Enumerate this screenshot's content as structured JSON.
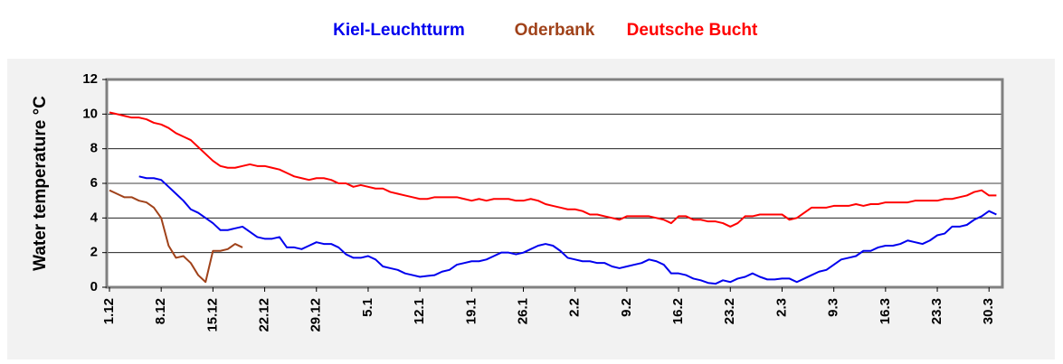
{
  "chart_data": {
    "type": "line",
    "ylabel": "Water temperature °C",
    "ylim": [
      0,
      12
    ],
    "yticks": [
      0,
      2,
      4,
      6,
      8,
      10,
      12
    ],
    "grid": true,
    "legend": "top",
    "categories": [
      "1.12",
      null,
      null,
      null,
      null,
      null,
      null,
      "8.12",
      null,
      null,
      null,
      null,
      null,
      null,
      "15.12",
      null,
      null,
      null,
      null,
      null,
      null,
      "22.12",
      null,
      null,
      null,
      null,
      null,
      null,
      "29.12",
      null,
      null,
      null,
      null,
      null,
      null,
      "5.1",
      null,
      null,
      null,
      null,
      null,
      null,
      "12.1",
      null,
      null,
      null,
      null,
      null,
      null,
      "19.1",
      null,
      null,
      null,
      null,
      null,
      null,
      "26.1",
      null,
      null,
      null,
      null,
      null,
      null,
      "2.2",
      null,
      null,
      null,
      null,
      null,
      null,
      "9.2",
      null,
      null,
      null,
      null,
      null,
      null,
      "16.2",
      null,
      null,
      null,
      null,
      null,
      null,
      "23.2",
      null,
      null,
      null,
      null,
      null,
      null,
      "2.3",
      null,
      null,
      null,
      null,
      null,
      null,
      "9.3",
      null,
      null,
      null,
      null,
      null,
      null,
      "16.3",
      null,
      null,
      null,
      null,
      null,
      null,
      "23.3",
      null,
      null,
      null,
      null,
      null,
      null,
      "30.3",
      null
    ],
    "series": [
      {
        "name": "Kiel-Leuchtturm",
        "color": "#0000ee",
        "values": [
          null,
          null,
          null,
          null,
          6.4,
          6.3,
          6.3,
          6.2,
          5.8,
          5.4,
          5.0,
          4.5,
          4.3,
          4.0,
          3.7,
          3.3,
          3.3,
          3.4,
          3.5,
          3.2,
          2.9,
          2.8,
          2.8,
          2.9,
          2.3,
          2.3,
          2.2,
          2.4,
          2.6,
          2.5,
          2.5,
          2.3,
          1.9,
          1.7,
          1.7,
          1.8,
          1.6,
          1.2,
          1.1,
          1.0,
          0.8,
          0.7,
          0.6,
          0.65,
          0.7,
          0.9,
          1.0,
          1.3,
          1.4,
          1.5,
          1.5,
          1.6,
          1.8,
          2.0,
          2.0,
          1.9,
          2.0,
          2.2,
          2.4,
          2.5,
          2.4,
          2.1,
          1.7,
          1.6,
          1.5,
          1.5,
          1.4,
          1.4,
          1.2,
          1.1,
          1.2,
          1.3,
          1.4,
          1.6,
          1.5,
          1.3,
          0.8,
          0.8,
          0.7,
          0.5,
          0.4,
          0.25,
          0.2,
          0.4,
          0.3,
          0.5,
          0.6,
          0.8,
          0.6,
          0.45,
          0.45,
          0.5,
          0.5,
          0.3,
          0.5,
          0.7,
          0.9,
          1.0,
          1.3,
          1.6,
          1.7,
          1.8,
          2.1,
          2.1,
          2.3,
          2.4,
          2.4,
          2.5,
          2.7,
          2.6,
          2.5,
          2.7,
          3.0,
          3.1,
          3.5,
          3.5,
          3.6,
          3.9,
          4.1,
          4.4,
          4.2
        ]
      },
      {
        "name": "Oderbank",
        "color": "#a0421a",
        "values": [
          5.6,
          5.4,
          5.2,
          5.2,
          5.0,
          4.9,
          4.6,
          4.0,
          2.4,
          1.7,
          1.8,
          1.4,
          0.7,
          0.3,
          2.1,
          2.1,
          2.2,
          2.5,
          2.3,
          null,
          null,
          null,
          null,
          null,
          null,
          null,
          null,
          null,
          null,
          null,
          null,
          null,
          null,
          null,
          null,
          null,
          null,
          null,
          null,
          null,
          null,
          null,
          null,
          null,
          null,
          null,
          null,
          null,
          null,
          null,
          null,
          null,
          null,
          null,
          null,
          null,
          null,
          null,
          null,
          null,
          null,
          null,
          null,
          null,
          null,
          null,
          null,
          null,
          null,
          null,
          null,
          null,
          null,
          null,
          null,
          null,
          null,
          null,
          null,
          null,
          null,
          null,
          null,
          null,
          null,
          null,
          null,
          null,
          null,
          null,
          null,
          null,
          null,
          null,
          null,
          null,
          null,
          null,
          null,
          null,
          null,
          null,
          null,
          null,
          null,
          null,
          null,
          null,
          null,
          null,
          null,
          null,
          null,
          null,
          null,
          null,
          null,
          null,
          null,
          null,
          null
        ]
      },
      {
        "name": "Deutsche Bucht",
        "color": "#ff0000",
        "values": [
          10.1,
          10.0,
          9.9,
          9.8,
          9.8,
          9.7,
          9.5,
          9.4,
          9.2,
          8.9,
          8.7,
          8.5,
          8.1,
          7.7,
          7.3,
          7.0,
          6.9,
          6.9,
          7.0,
          7.1,
          7.0,
          7.0,
          6.9,
          6.8,
          6.6,
          6.4,
          6.3,
          6.2,
          6.3,
          6.3,
          6.2,
          6.0,
          6.0,
          5.8,
          5.9,
          5.8,
          5.7,
          5.7,
          5.5,
          5.4,
          5.3,
          5.2,
          5.1,
          5.1,
          5.2,
          5.2,
          5.2,
          5.2,
          5.1,
          5.0,
          5.1,
          5.0,
          5.1,
          5.1,
          5.1,
          5.0,
          5.0,
          5.1,
          5.0,
          4.8,
          4.7,
          4.6,
          4.5,
          4.5,
          4.4,
          4.2,
          4.2,
          4.1,
          4.0,
          3.9,
          4.1,
          4.1,
          4.1,
          4.1,
          4.0,
          3.9,
          3.7,
          4.1,
          4.1,
          3.9,
          3.9,
          3.8,
          3.8,
          3.7,
          3.5,
          3.7,
          4.1,
          4.1,
          4.2,
          4.2,
          4.2,
          4.2,
          3.9,
          4.0,
          4.3,
          4.6,
          4.6,
          4.6,
          4.7,
          4.7,
          4.7,
          4.8,
          4.7,
          4.8,
          4.8,
          4.9,
          4.9,
          4.9,
          4.9,
          5.0,
          5.0,
          5.0,
          5.0,
          5.1,
          5.1,
          5.2,
          5.3,
          5.5,
          5.6,
          5.3,
          5.3
        ]
      }
    ]
  }
}
